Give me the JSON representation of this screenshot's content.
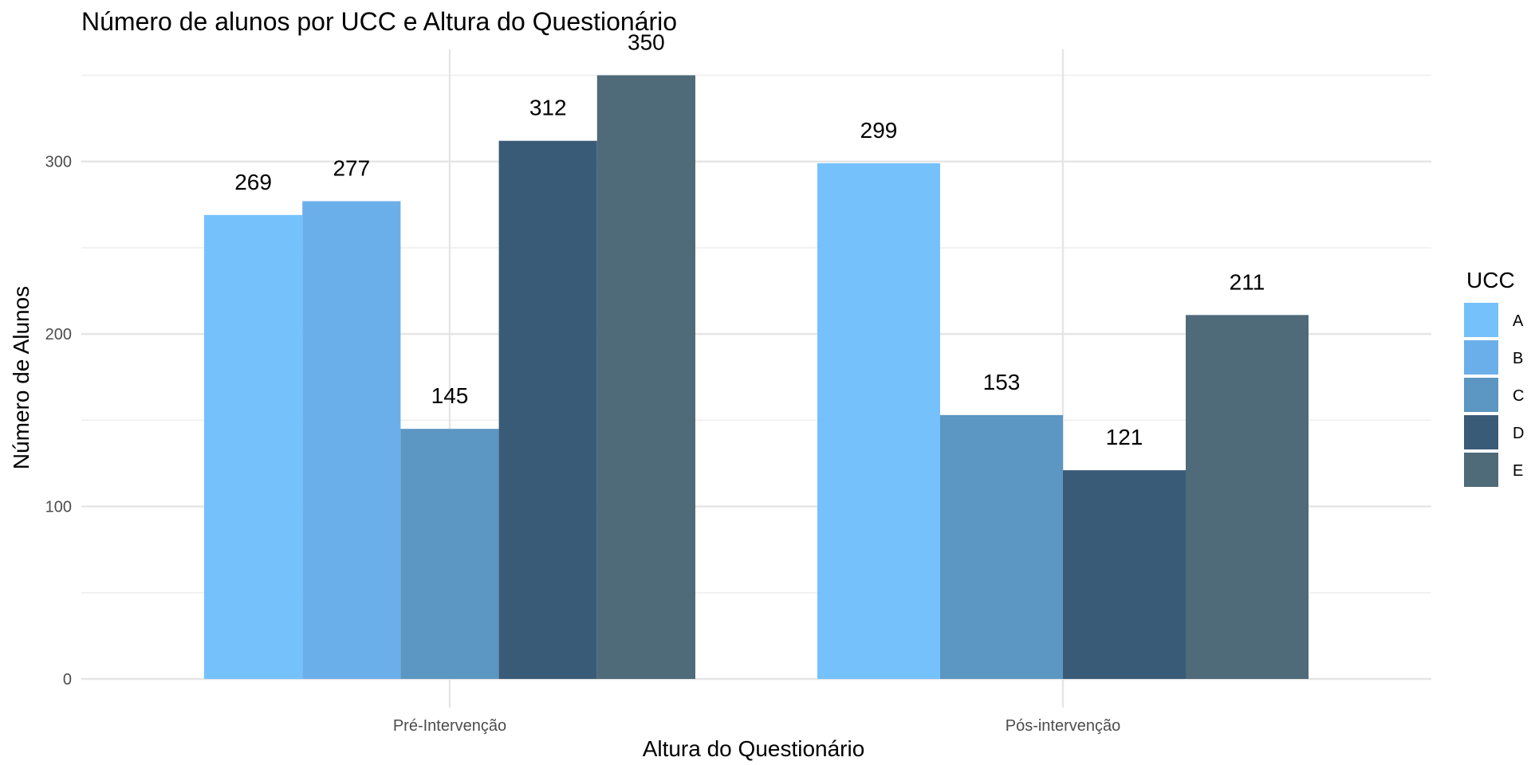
{
  "chart_data": {
    "type": "bar",
    "title": "Número de alunos por UCC e Altura do Questionário",
    "xlabel": "Altura do Questionário",
    "ylabel": "Número de Alunos",
    "categories": [
      "Pré-Intervenção",
      "Pós-intervenção"
    ],
    "ylim": [
      0,
      365
    ],
    "y_ticks": [
      0,
      100,
      200,
      300
    ],
    "grid": true,
    "legend": {
      "title": "UCC",
      "position": "right"
    },
    "series": [
      {
        "name": "A",
        "color": "#75C1FC",
        "values": [
          269,
          299
        ]
      },
      {
        "name": "B",
        "color": "#6BAFEA",
        "values": [
          277,
          null
        ]
      },
      {
        "name": "C",
        "color": "#5C96C2",
        "values": [
          145,
          153
        ]
      },
      {
        "name": "D",
        "color": "#3A5B78",
        "values": [
          312,
          121
        ]
      },
      {
        "name": "E",
        "color": "#4F6A78",
        "values": [
          350,
          211
        ]
      }
    ],
    "value_labels": [
      [
        "269",
        "277",
        "145",
        "312",
        "350"
      ],
      [
        "299",
        "153",
        "121",
        "211"
      ]
    ]
  }
}
